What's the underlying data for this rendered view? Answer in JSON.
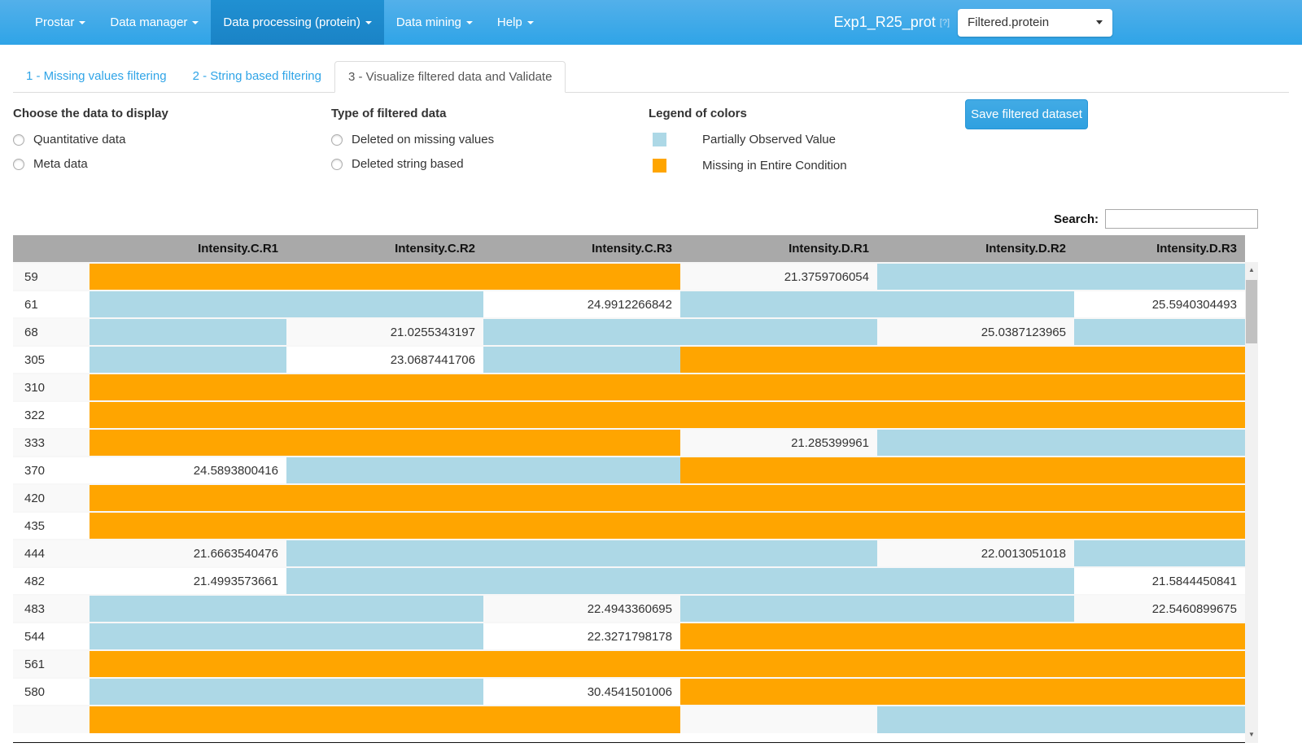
{
  "navbar": {
    "menus": [
      {
        "label": "Prostar",
        "active": false
      },
      {
        "label": "Data manager",
        "active": false
      },
      {
        "label": "Data processing (protein)",
        "active": true
      },
      {
        "label": "Data mining",
        "active": false
      },
      {
        "label": "Help",
        "active": false
      }
    ],
    "dataset_title": "Exp1_R25_prot",
    "help_badge": "[?]",
    "dataset_selector_value": "Filtered.protein"
  },
  "tabs": [
    {
      "label": "1 - Missing values filtering",
      "active": false
    },
    {
      "label": "2 - String based filtering",
      "active": false
    },
    {
      "label": "3 - Visualize filtered data and Validate",
      "active": true
    }
  ],
  "controls": {
    "data_choice": {
      "heading": "Choose the data to display",
      "options": [
        {
          "label": "Quantitative data",
          "checked": false
        },
        {
          "label": "Meta data",
          "checked": false
        }
      ]
    },
    "filter_type": {
      "heading": "Type of filtered data",
      "options": [
        {
          "label": "Deleted on missing values",
          "checked": false
        },
        {
          "label": "Deleted string based",
          "checked": false
        }
      ]
    },
    "legend": {
      "heading": "Legend of colors",
      "items": [
        {
          "label": "Partially Observed Value",
          "color": "#ADD8E6",
          "key": "pov"
        },
        {
          "label": "Missing in Entire Condition",
          "color": "#FFA500",
          "key": "mec"
        }
      ]
    },
    "save_button": "Save filtered dataset"
  },
  "table": {
    "search_label": "Search:",
    "search_value": "",
    "columns": [
      "",
      "Intensity.C.R1",
      "Intensity.C.R2",
      "Intensity.C.R3",
      "Intensity.D.R1",
      "Intensity.D.R2",
      "Intensity.D.R3"
    ],
    "cell_colors": {
      "pov": "#ADD8E6",
      "mec": "#FFA500"
    },
    "rows": [
      {
        "id": "59",
        "cells": [
          "mec",
          "mec",
          "mec",
          "21.3759706054",
          "pov",
          "pov"
        ]
      },
      {
        "id": "61",
        "cells": [
          "pov",
          "pov",
          "24.9912266842",
          "pov",
          "pov",
          "25.5940304493"
        ]
      },
      {
        "id": "68",
        "cells": [
          "pov",
          "21.0255343197",
          "pov",
          "pov",
          "25.0387123965",
          "pov"
        ]
      },
      {
        "id": "305",
        "cells": [
          "pov",
          "23.0687441706",
          "pov",
          "mec",
          "mec",
          "mec"
        ]
      },
      {
        "id": "310",
        "cells": [
          "mec",
          "mec",
          "mec",
          "mec",
          "mec",
          "mec"
        ]
      },
      {
        "id": "322",
        "cells": [
          "mec",
          "mec",
          "mec",
          "mec",
          "mec",
          "mec"
        ]
      },
      {
        "id": "333",
        "cells": [
          "mec",
          "mec",
          "mec",
          "21.285399961",
          "pov",
          "pov"
        ]
      },
      {
        "id": "370",
        "cells": [
          "24.5893800416",
          "pov",
          "pov",
          "mec",
          "mec",
          "mec"
        ]
      },
      {
        "id": "420",
        "cells": [
          "mec",
          "mec",
          "mec",
          "mec",
          "mec",
          "mec"
        ]
      },
      {
        "id": "435",
        "cells": [
          "mec",
          "mec",
          "mec",
          "mec",
          "mec",
          "mec"
        ]
      },
      {
        "id": "444",
        "cells": [
          "21.6663540476",
          "pov",
          "pov",
          "pov",
          "22.0013051018",
          "pov"
        ]
      },
      {
        "id": "482",
        "cells": [
          "21.4993573661",
          "pov",
          "pov",
          "pov",
          "pov",
          "21.5844450841"
        ]
      },
      {
        "id": "483",
        "cells": [
          "pov",
          "pov",
          "22.4943360695",
          "pov",
          "pov",
          "22.5460899675"
        ]
      },
      {
        "id": "544",
        "cells": [
          "pov",
          "pov",
          "22.3271798178",
          "mec",
          "mec",
          "mec"
        ]
      },
      {
        "id": "561",
        "cells": [
          "mec",
          "mec",
          "mec",
          "mec",
          "mec",
          "mec"
        ]
      },
      {
        "id": "580",
        "cells": [
          "pov",
          "pov",
          "30.4541501006",
          "mec",
          "mec",
          "mec"
        ]
      },
      {
        "id": "",
        "cells": [
          "mec",
          "mec",
          "mec",
          "",
          "pov",
          "pov"
        ]
      }
    ],
    "scrollbar": {
      "up_icon": "▲",
      "down_icon": "▼"
    }
  }
}
